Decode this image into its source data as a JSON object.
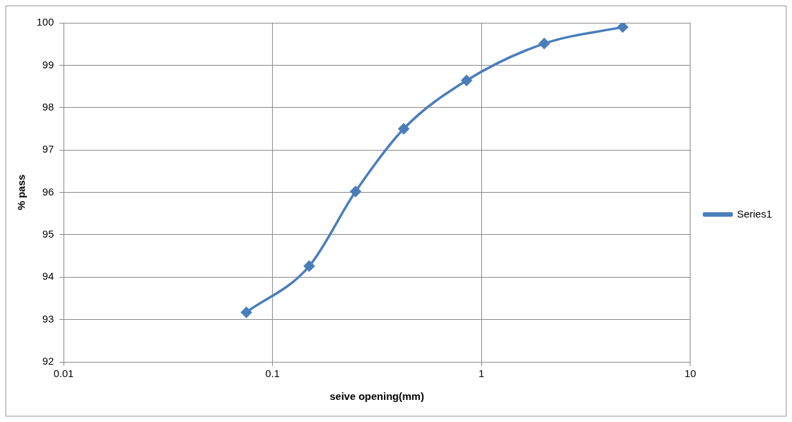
{
  "chart_data": {
    "type": "line",
    "xlabel": "seive opening(mm)",
    "ylabel": "% pass",
    "x": [
      0.075,
      0.15,
      0.25,
      0.425,
      0.85,
      2,
      4.75
    ],
    "series": [
      {
        "name": "Series1",
        "color": "#4a7ebb",
        "values": [
          93.17,
          94.26,
          96.02,
          97.5,
          98.64,
          99.51,
          99.9
        ]
      }
    ],
    "log": "x",
    "xlim": [
      0.01,
      10
    ],
    "xticks": [
      0.01,
      0.1,
      1,
      10
    ],
    "ylim": [
      92,
      100
    ],
    "yticks": [
      92,
      93,
      94,
      95,
      96,
      97,
      98,
      99,
      100
    ],
    "grid": true,
    "legend": "right",
    "marker": "diamond",
    "line_style": "solid"
  }
}
